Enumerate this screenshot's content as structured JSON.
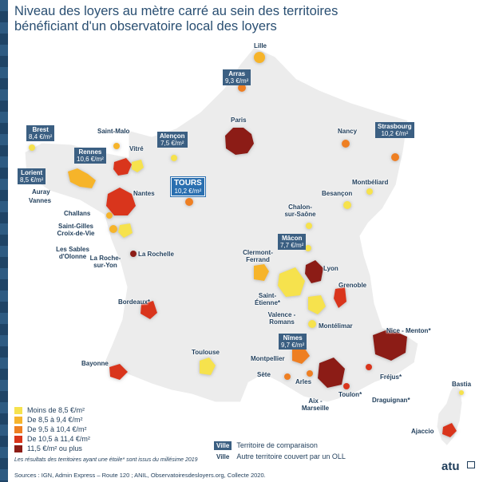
{
  "title_line1": "Niveau des loyers au mètre carré au sein des territoires",
  "title_line2": "bénéficiant d'un observatoire local des loyers",
  "colors": {
    "lt_8_5": "#f6e24e",
    "8_5_9_4": "#f6b42c",
    "9_5_10_4": "#ee7f22",
    "10_5_11_4": "#d9351a",
    "gte_11_5": "#8c1d16",
    "land": "#eeeeee",
    "box": "#3b5f82",
    "tours_box": "#2a6fb0"
  },
  "comparison_territories": [
    {
      "city": "Arras",
      "value": "9,3 €/m²"
    },
    {
      "city": "Brest",
      "value": "8,4 €/m²"
    },
    {
      "city": "Rennes",
      "value": "10,6 €/m²"
    },
    {
      "city": "Lorient",
      "value": "8,5 €/m²"
    },
    {
      "city": "Alençon",
      "value": "7,5 €/m²"
    },
    {
      "city": "TOURS",
      "value": "10,2 €/m²"
    },
    {
      "city": "Strasbourg",
      "value": "10,2 €/m²"
    },
    {
      "city": "Mâcon",
      "value": "7,7 €/m²"
    },
    {
      "city": "Nîmes",
      "value": "9,7 €/m²"
    }
  ],
  "other_territories": {
    "lille": "Lille",
    "paris": "Paris",
    "nancy": "Nancy",
    "saint_malo": "Saint-Malo",
    "vitre": "Vitré",
    "montbeliard": "Montbéliard",
    "auray": "Auray",
    "vannes": "Vannes",
    "nantes": "Nantes",
    "besancon": "Besançon",
    "chalon_line1": "Chalon-",
    "chalon_line2": "sur-Saône",
    "challans": "Challans",
    "saint_gilles_line1": "Saint-Gilles",
    "saint_gilles_line2": "Croix-de-Vie",
    "sables_line1": "Les Sables",
    "sables_line2": "d'Olonne",
    "la_rochelle": "La Rochelle",
    "roche_yon_line1": "La Roche-",
    "roche_yon_line2": "sur-Yon",
    "clermont_line1": "Clermont-",
    "clermont_line2": "Ferrand",
    "lyon": "Lyon",
    "grenoble": "Grenoble",
    "saint_etienne_line1": "Saint-",
    "saint_etienne_line2": "Étienne*",
    "bordeaux": "Bordeaux*",
    "valence_line1": "Valence -",
    "valence_line2": "Romans",
    "montelimar": "Montélimar",
    "toulouse": "Toulouse",
    "nice": "Nice - Menton*",
    "montpellier": "Montpellier",
    "bayonne": "Bayonne",
    "sete": "Sète",
    "arles": "Arles",
    "frejus": "Fréjus*",
    "aix_line1": "Aix -",
    "aix_line2": "Marseille",
    "toulon": "Toulon*",
    "draguignan": "Draguignan*",
    "bastia": "Bastia",
    "ajaccio": "Ajaccio"
  },
  "legend": [
    {
      "label": "Moins de 8,5 €/m²",
      "color": "#f6e24e"
    },
    {
      "label": "De 8,5 à 9,4 €/m²",
      "color": "#f6b42c"
    },
    {
      "label": "De 9,5 à 10,4 €/m²",
      "color": "#ee7f22"
    },
    {
      "label": "De 10,5 à 11,4 €/m²",
      "color": "#d9351a"
    },
    {
      "label": "11,5 €/m² ou plus",
      "color": "#8c1d16"
    }
  ],
  "key": {
    "box_label": "Ville",
    "box_text": "Territoire de comparaison",
    "plain_label": "Ville",
    "plain_text": "Autre territoire couvert par un OLL"
  },
  "note": "Les résultats des territoires ayant une étoile* sont issus du millésime 2019",
  "sources": "Sources : IGN, Admin Express – Route 120 ; ANIL, Observatoiresdesloyers.org, Collecte 2020.",
  "logo": "atu"
}
